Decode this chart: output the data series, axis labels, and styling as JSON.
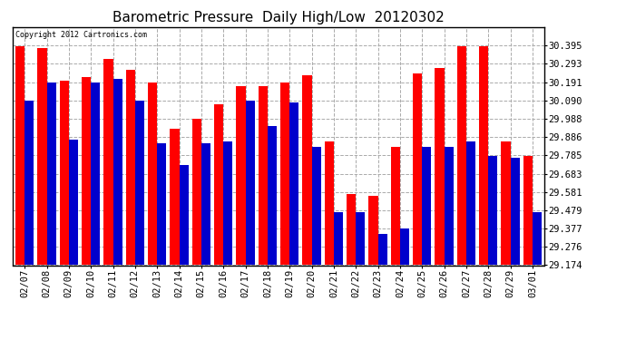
{
  "title": "Barometric Pressure  Daily High/Low  20120302",
  "copyright": "Copyright 2012 Cartronics.com",
  "dates": [
    "02/07",
    "02/08",
    "02/09",
    "02/10",
    "02/11",
    "02/12",
    "02/13",
    "02/14",
    "02/15",
    "02/16",
    "02/17",
    "02/18",
    "02/19",
    "02/20",
    "02/21",
    "02/22",
    "02/23",
    "02/24",
    "02/25",
    "02/26",
    "02/27",
    "02/28",
    "02/29",
    "03/01"
  ],
  "highs": [
    30.39,
    30.38,
    30.2,
    30.22,
    30.32,
    30.26,
    30.19,
    29.93,
    29.99,
    30.07,
    30.17,
    30.17,
    30.19,
    30.23,
    29.86,
    29.57,
    29.56,
    29.83,
    30.24,
    30.27,
    30.39,
    30.39,
    29.86,
    29.78
  ],
  "lows": [
    30.09,
    30.19,
    29.87,
    30.19,
    30.21,
    30.09,
    29.85,
    29.73,
    29.85,
    29.86,
    30.09,
    29.95,
    30.08,
    29.83,
    29.47,
    29.47,
    29.35,
    29.38,
    29.83,
    29.83,
    29.86,
    29.78,
    29.77,
    29.47
  ],
  "high_color": "#ff0000",
  "low_color": "#0000cc",
  "background_color": "#ffffff",
  "grid_color": "#aaaaaa",
  "title_fontsize": 11,
  "ymin": 29.174,
  "ymax": 30.497,
  "yticks": [
    29.174,
    29.276,
    29.377,
    29.479,
    29.581,
    29.683,
    29.785,
    29.886,
    29.988,
    30.09,
    30.191,
    30.293,
    30.395
  ]
}
